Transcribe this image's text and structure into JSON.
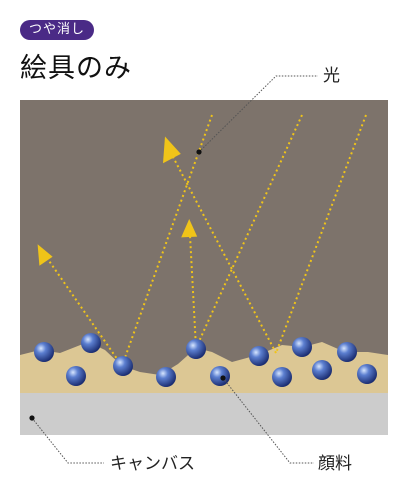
{
  "badge": {
    "label": "つや消し"
  },
  "title": "絵具のみ",
  "labels": {
    "light": "光",
    "canvas": "キャンバス",
    "pigment": "顔料"
  },
  "colors": {
    "badge_bg": "#4a2a86",
    "background_layer": "#7d736b",
    "paint_layer": "#dcc794",
    "canvas_layer": "#cccccc",
    "light_ray": "#f0c419",
    "pigment_particle": "#3a56a8",
    "leader_line": "#555555"
  }
}
